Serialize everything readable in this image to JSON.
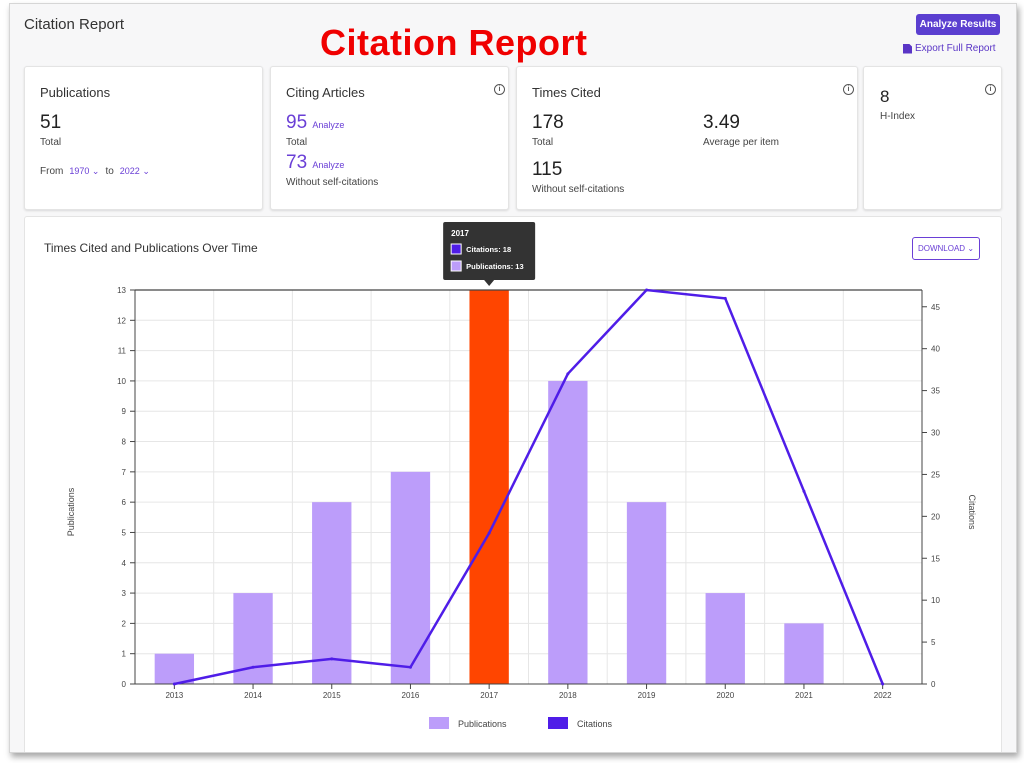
{
  "header": {
    "title": "Citation Report",
    "banner": "Citation Report",
    "analyze_label": "Analyze Results",
    "export_label": "Export Full Report"
  },
  "cards": {
    "publications": {
      "title": "Publications",
      "value": "51",
      "sub": "Total",
      "from_label": "From",
      "from_value": "1970",
      "to_label": "to",
      "to_value": "2022"
    },
    "citing": {
      "title": "Citing Articles",
      "total": "95",
      "total_link": "Analyze",
      "total_sub": "Total",
      "no_self": "73",
      "no_self_link": "Analyze",
      "no_self_sub": "Without self-citations"
    },
    "times_cited": {
      "title": "Times Cited",
      "total": "178",
      "total_sub": "Total",
      "avg": "3.49",
      "avg_sub": "Average per item",
      "no_self": "115",
      "no_self_sub": "Without self-citations"
    },
    "hindex": {
      "value": "8",
      "label": "H-Index"
    }
  },
  "chart_panel": {
    "title": "Times Cited and Publications Over Time",
    "download_label": "DOWNLOAD"
  },
  "chart_data": {
    "type": "bar",
    "categories": [
      "2013",
      "2014",
      "2015",
      "2016",
      "2017",
      "2018",
      "2019",
      "2020",
      "2021",
      "2022"
    ],
    "series": [
      {
        "name": "Publications",
        "type": "bar",
        "axis": "left",
        "values": [
          1,
          3,
          6,
          7,
          13,
          10,
          6,
          3,
          2,
          0
        ],
        "color": "#bc9dfa",
        "highlight_color": "#ff4500",
        "highlight_index": 4
      },
      {
        "name": "Citations",
        "type": "line",
        "axis": "right",
        "values": [
          0,
          2,
          3,
          2,
          18,
          37,
          47,
          46,
          23,
          0
        ],
        "color": "#4f1de8"
      }
    ],
    "ylabel": "Publications",
    "y2label": "Citations",
    "ylim": [
      0,
      13
    ],
    "y2lim": [
      0,
      47
    ],
    "yticks": [
      0,
      1,
      2,
      3,
      4,
      5,
      6,
      7,
      8,
      9,
      10,
      11,
      12,
      13
    ],
    "y2ticks": [
      0,
      5,
      10,
      15,
      20,
      25,
      30,
      35,
      40,
      45
    ],
    "grid": true,
    "legend_position": "bottom",
    "tooltip": {
      "title": "2017",
      "rows": [
        "Citations: 18",
        "Publications: 13"
      ]
    }
  }
}
